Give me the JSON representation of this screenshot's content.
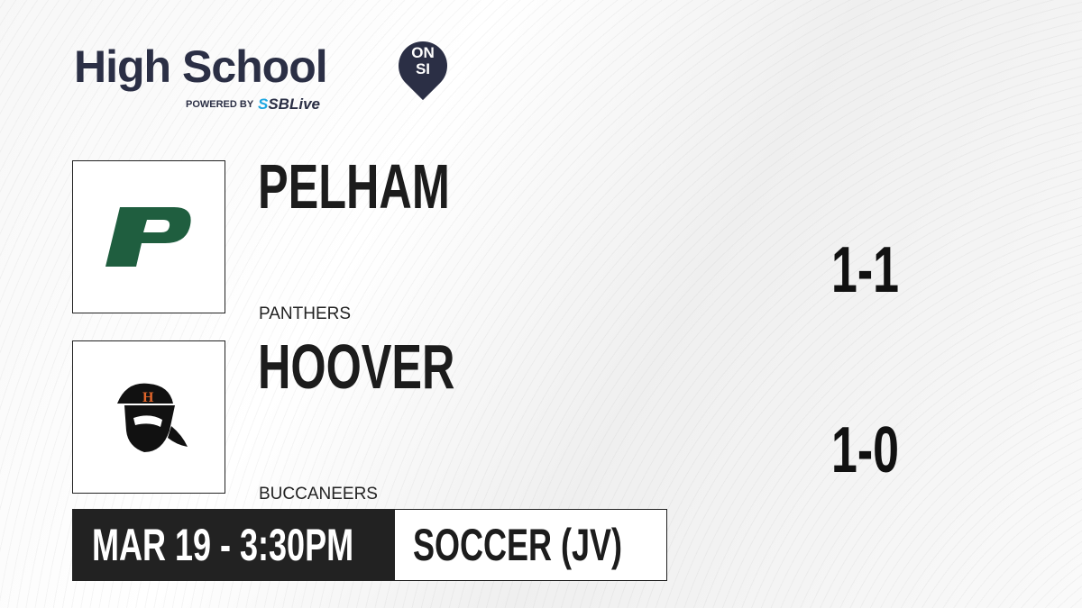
{
  "brand": {
    "title": "High School",
    "badge_top": "ON",
    "badge_bottom": "SI",
    "powered_by": "POWERED BY",
    "partner_prefix": "S",
    "partner": "SBLive",
    "accent": "#1ea7e1",
    "brand_color": "#2b2f45"
  },
  "teams": [
    {
      "name": "PELHAM",
      "mascot": "PANTHERS",
      "score": "1-1",
      "logo_letter": "P",
      "logo_color": "#1f5e3f"
    },
    {
      "name": "HOOVER",
      "mascot": "BUCCANEERS",
      "score": "1-0",
      "logo_letter": "H",
      "logo_color": "#e2652a"
    }
  ],
  "game": {
    "datetime": "MAR 19 - 3:30PM",
    "sport": "SOCCER (JV)"
  }
}
